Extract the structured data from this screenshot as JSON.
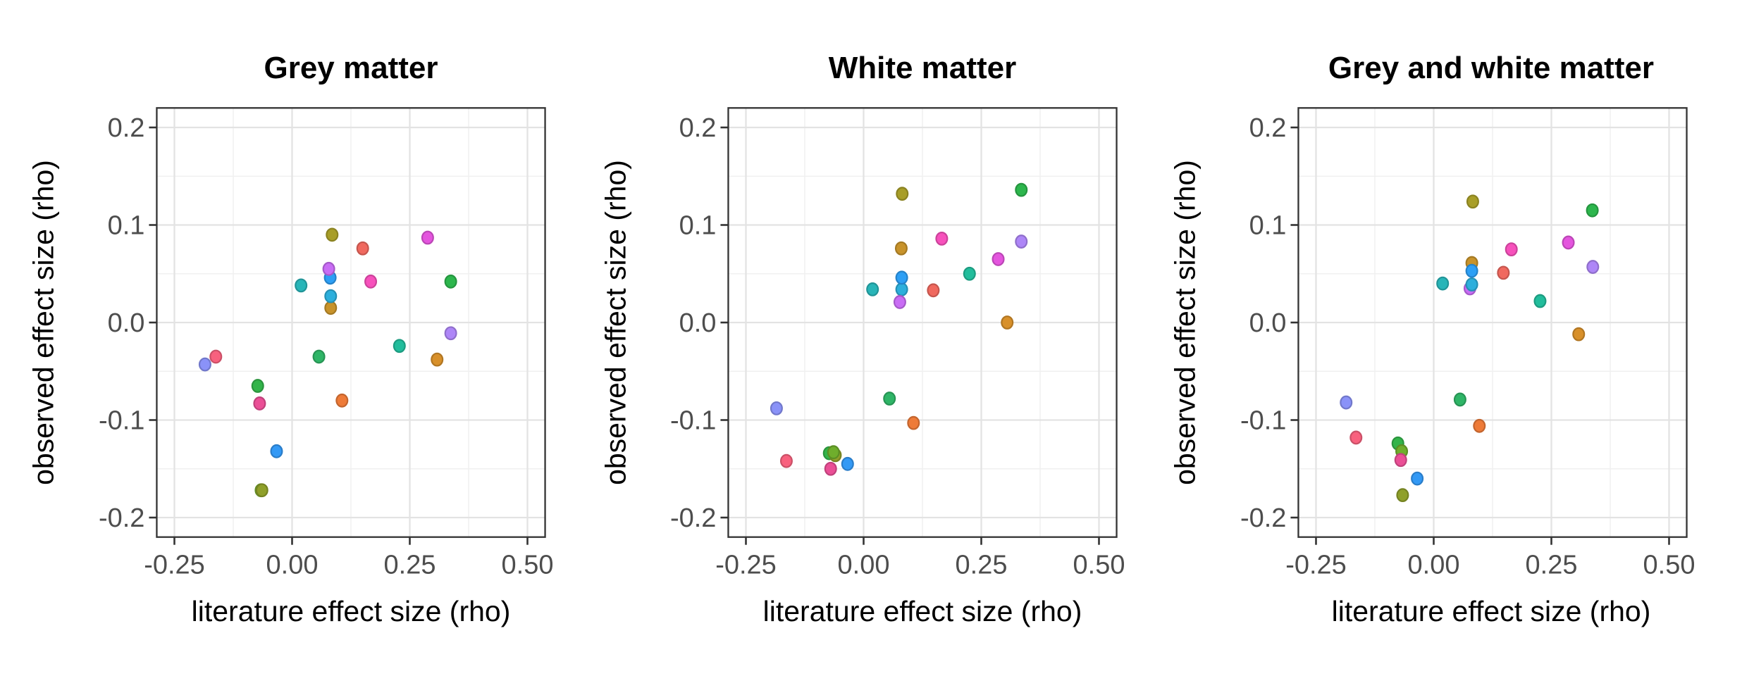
{
  "figure": {
    "background": "#FFFFFF",
    "x_axis_title": "literature effect size (rho)",
    "y_axis_title": "observed effect size (rho)"
  },
  "theme": {
    "panel_border": "#333333",
    "grid_major": "#E3E3E3",
    "grid_minor": "#F0F0F0",
    "tick_mark": "#333333",
    "tick_label_color": "#4D4D4D",
    "title_color": "#000000"
  },
  "chart_data": {
    "type": "scatter",
    "xlabel": "literature effect size (rho)",
    "ylabel": "observed effect size (rho)",
    "xlim": [
      -0.2875,
      0.5375
    ],
    "ylim": [
      -0.22,
      0.22
    ],
    "grid": true,
    "legend": "none",
    "x_major_ticks": [
      {
        "v": -0.25,
        "label": "-0.25"
      },
      {
        "v": 0.0,
        "label": "0.00"
      },
      {
        "v": 0.25,
        "label": "0.25"
      },
      {
        "v": 0.5,
        "label": "0.50"
      }
    ],
    "y_major_ticks": [
      {
        "v": 0.2,
        "label": "0.2"
      },
      {
        "v": 0.1,
        "label": "0.1"
      },
      {
        "v": 0.0,
        "label": "0.0"
      },
      {
        "v": -0.1,
        "label": "-0.1"
      },
      {
        "v": -0.2,
        "label": "-0.2"
      }
    ],
    "x_minor_ticks": [
      -0.125,
      0.125,
      0.375
    ],
    "y_minor_ticks": [
      -0.15,
      -0.05,
      0.05,
      0.15
    ],
    "panels": [
      {
        "title": "Grey matter",
        "points": [
          {
            "study": "salmon",
            "x": 0.15,
            "y": 0.076,
            "color": "#F0695F"
          },
          {
            "study": "orange",
            "x": 0.106,
            "y": -0.08,
            "color": "#EE7B38"
          },
          {
            "study": "amber",
            "x": 0.308,
            "y": -0.038,
            "color": "#D8902A"
          },
          {
            "study": "mustard",
            "x": 0.082,
            "y": 0.015,
            "color": "#C8932B"
          },
          {
            "study": "olive",
            "x": 0.085,
            "y": 0.09,
            "color": "#A89E28"
          },
          {
            "study": "chartreuse",
            "x": -0.066,
            "y": -0.172,
            "color": "#6FAE2C"
          },
          {
            "study": "dark-olive",
            "x": -0.064,
            "y": -0.172,
            "color": "#8FA02A"
          },
          {
            "study": "green",
            "x": -0.073,
            "y": -0.065,
            "color": "#33B44A"
          },
          {
            "study": "bright-green",
            "x": 0.337,
            "y": 0.042,
            "color": "#2DB64D"
          },
          {
            "study": "emerald",
            "x": 0.057,
            "y": -0.035,
            "color": "#2FB567"
          },
          {
            "study": "spring",
            "x": 0.228,
            "y": -0.024,
            "color": "#22BD9C"
          },
          {
            "study": "teal",
            "x": 0.019,
            "y": 0.038,
            "color": "#28B5B8"
          },
          {
            "study": "cyan",
            "x": 0.082,
            "y": 0.027,
            "color": "#2DAFDC"
          },
          {
            "study": "sky",
            "x": 0.081,
            "y": 0.046,
            "color": "#2D9FF5"
          },
          {
            "study": "blue",
            "x": -0.033,
            "y": -0.132,
            "color": "#3399F5"
          },
          {
            "study": "periwinkle",
            "x": -0.185,
            "y": -0.043,
            "color": "#8A92F8"
          },
          {
            "study": "purple",
            "x": 0.337,
            "y": -0.011,
            "color": "#AE86F7"
          },
          {
            "study": "violet",
            "x": 0.078,
            "y": 0.055,
            "color": "#C96DF5"
          },
          {
            "study": "magenta",
            "x": 0.288,
            "y": 0.087,
            "color": "#E455DE"
          },
          {
            "study": "hot-pink",
            "x": 0.167,
            "y": 0.042,
            "color": "#F751BC"
          },
          {
            "study": "deep-pink",
            "x": -0.069,
            "y": -0.083,
            "color": "#EA4F96"
          },
          {
            "study": "rose",
            "x": -0.162,
            "y": -0.035,
            "color": "#F8617E"
          }
        ]
      },
      {
        "title": "White matter",
        "points": [
          {
            "study": "salmon",
            "x": 0.148,
            "y": 0.033,
            "color": "#F0695F"
          },
          {
            "study": "orange",
            "x": 0.106,
            "y": -0.103,
            "color": "#EE7B38"
          },
          {
            "study": "amber",
            "x": 0.305,
            "y": 0.0,
            "color": "#D8902A"
          },
          {
            "study": "mustard",
            "x": 0.08,
            "y": 0.076,
            "color": "#C8932B"
          },
          {
            "study": "olive",
            "x": 0.082,
            "y": 0.132,
            "color": "#A89E28"
          },
          {
            "study": "green",
            "x": -0.073,
            "y": -0.134,
            "color": "#33B44A"
          },
          {
            "study": "dark-olive",
            "x": -0.06,
            "y": -0.136,
            "color": "#8FA02A"
          },
          {
            "study": "chartreuse",
            "x": -0.064,
            "y": -0.133,
            "color": "#6FAE2C"
          },
          {
            "study": "bright-green",
            "x": 0.335,
            "y": 0.136,
            "color": "#2DB64D"
          },
          {
            "study": "emerald",
            "x": 0.055,
            "y": -0.078,
            "color": "#2FB567"
          },
          {
            "study": "spring",
            "x": 0.225,
            "y": 0.05,
            "color": "#22BD9C"
          },
          {
            "study": "teal",
            "x": 0.019,
            "y": 0.034,
            "color": "#28B5B8"
          },
          {
            "study": "cyan",
            "x": 0.081,
            "y": 0.034,
            "color": "#2DAFDC"
          },
          {
            "study": "sky",
            "x": 0.081,
            "y": 0.046,
            "color": "#2D9FF5"
          },
          {
            "study": "blue",
            "x": -0.034,
            "y": -0.145,
            "color": "#3399F5"
          },
          {
            "study": "periwinkle",
            "x": -0.185,
            "y": -0.088,
            "color": "#8A92F8"
          },
          {
            "study": "purple",
            "x": 0.335,
            "y": 0.083,
            "color": "#AE86F7"
          },
          {
            "study": "violet",
            "x": 0.077,
            "y": 0.021,
            "color": "#C96DF5"
          },
          {
            "study": "magenta",
            "x": 0.286,
            "y": 0.065,
            "color": "#E455DE"
          },
          {
            "study": "hot-pink",
            "x": 0.166,
            "y": 0.086,
            "color": "#F751BC"
          },
          {
            "study": "deep-pink",
            "x": -0.07,
            "y": -0.15,
            "color": "#EA4F96"
          },
          {
            "study": "rose",
            "x": -0.164,
            "y": -0.142,
            "color": "#F8617E"
          }
        ]
      },
      {
        "title": "Grey and white matter",
        "points": [
          {
            "study": "salmon",
            "x": 0.148,
            "y": 0.051,
            "color": "#F0695F"
          },
          {
            "study": "orange",
            "x": 0.097,
            "y": -0.106,
            "color": "#EE7B38"
          },
          {
            "study": "amber",
            "x": 0.308,
            "y": -0.012,
            "color": "#D8902A"
          },
          {
            "study": "mustard",
            "x": 0.081,
            "y": 0.061,
            "color": "#C8932B"
          },
          {
            "study": "olive",
            "x": 0.083,
            "y": 0.124,
            "color": "#A89E28"
          },
          {
            "study": "dark-olive",
            "x": -0.066,
            "y": -0.177,
            "color": "#8FA02A"
          },
          {
            "study": "green",
            "x": -0.076,
            "y": -0.124,
            "color": "#33B44A"
          },
          {
            "study": "chartreuse",
            "x": -0.068,
            "y": -0.132,
            "color": "#6FAE2C"
          },
          {
            "study": "bright-green",
            "x": 0.337,
            "y": 0.115,
            "color": "#2DB64D"
          },
          {
            "study": "emerald",
            "x": 0.056,
            "y": -0.079,
            "color": "#2FB567"
          },
          {
            "study": "spring",
            "x": 0.226,
            "y": 0.022,
            "color": "#22BD9C"
          },
          {
            "study": "teal",
            "x": 0.019,
            "y": 0.04,
            "color": "#28B5B8"
          },
          {
            "study": "violet",
            "x": 0.077,
            "y": 0.035,
            "color": "#C96DF5"
          },
          {
            "study": "cyan",
            "x": 0.081,
            "y": 0.039,
            "color": "#2DAFDC"
          },
          {
            "study": "sky",
            "x": 0.081,
            "y": 0.053,
            "color": "#2D9FF5"
          },
          {
            "study": "blue",
            "x": -0.035,
            "y": -0.16,
            "color": "#3399F5"
          },
          {
            "study": "periwinkle",
            "x": -0.186,
            "y": -0.082,
            "color": "#8A92F8"
          },
          {
            "study": "purple",
            "x": 0.338,
            "y": 0.057,
            "color": "#AE86F7"
          },
          {
            "study": "magenta",
            "x": 0.286,
            "y": 0.082,
            "color": "#E455DE"
          },
          {
            "study": "hot-pink",
            "x": 0.165,
            "y": 0.075,
            "color": "#F751BC"
          },
          {
            "study": "deep-pink",
            "x": -0.07,
            "y": -0.141,
            "color": "#EA4F96"
          },
          {
            "study": "rose",
            "x": -0.165,
            "y": -0.118,
            "color": "#F8617E"
          }
        ]
      }
    ]
  }
}
